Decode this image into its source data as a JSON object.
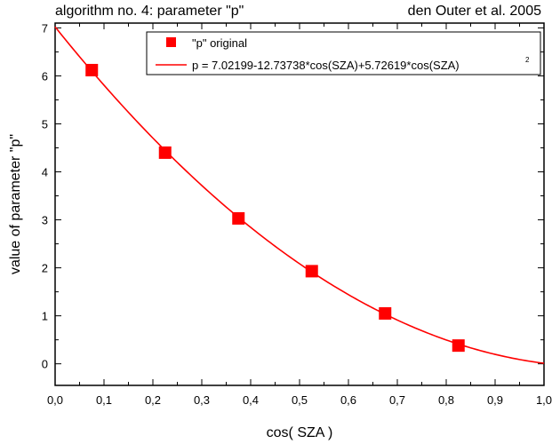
{
  "chart_data": {
    "type": "scatter",
    "title": "algorithm no. 4: parameter \"p\"",
    "subtitle": "den Outer et al. 2005",
    "xlabel": "cos( SZA )",
    "ylabel": "value of parameter \"p\"",
    "xlim": [
      0.0,
      1.0
    ],
    "ylim": [
      -0.45,
      7.1
    ],
    "x_ticks": [
      "0,0",
      "0,1",
      "0,2",
      "0,3",
      "0,4",
      "0,5",
      "0,6",
      "0,7",
      "0,8",
      "0,9",
      "1,0"
    ],
    "y_ticks": [
      "0",
      "1",
      "2",
      "3",
      "4",
      "5",
      "6",
      "7"
    ],
    "grid": false,
    "legend_position": "top-right",
    "series": [
      {
        "name": "\"p\" original",
        "kind": "markers",
        "marker": "square",
        "color": "#ff0000",
        "x": [
          0.075,
          0.225,
          0.375,
          0.525,
          0.675,
          0.825
        ],
        "y": [
          6.12,
          4.4,
          3.03,
          1.93,
          1.05,
          0.38
        ]
      },
      {
        "name": "p = 7.02199-12.73738*cos(SZA)+5.72619*cos(SZA)²",
        "legend_text": "p = 7.02199-12.73738*cos(SZA)+5.72619*cos(SZA)",
        "legend_superscript": "2",
        "kind": "fit-curve",
        "color": "#ff0000",
        "coefficients": [
          7.02199,
          -12.73738,
          5.72619
        ]
      }
    ]
  }
}
